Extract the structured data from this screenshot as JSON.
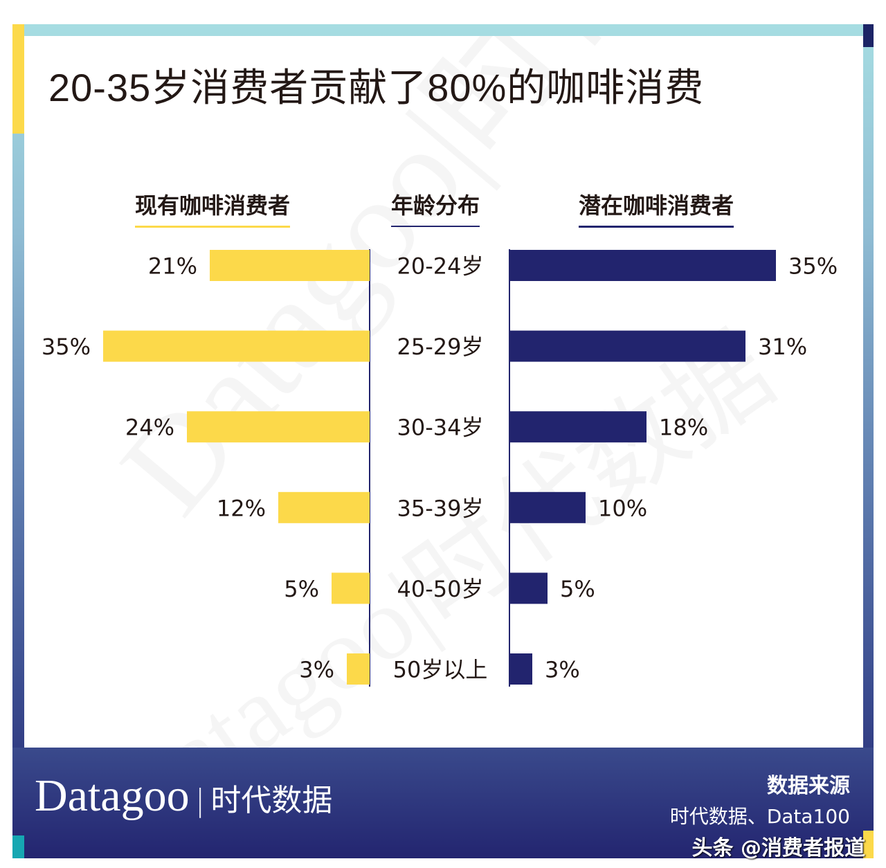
{
  "title": "20-35岁消费者贡献了80%的咖啡消费",
  "colors": {
    "existing": "#fcd94a",
    "potential": "#22246e",
    "frame_top": "#a6dde2",
    "frame_bottom": "#222470"
  },
  "chart_data": {
    "type": "bar",
    "orientation": "horizontal-butterfly",
    "categories_header": "年龄分布",
    "categories": [
      "20-24岁",
      "25-29岁",
      "30-34岁",
      "35-39岁",
      "40-50岁",
      "50岁以上"
    ],
    "series": [
      {
        "name": "现有咖啡消费者",
        "values": [
          21,
          35,
          24,
          12,
          5,
          3
        ],
        "labels": [
          "21%",
          "35%",
          "24%",
          "12%",
          "5%",
          "3%"
        ]
      },
      {
        "name": "潜在咖啡消费者",
        "values": [
          35,
          31,
          18,
          10,
          5,
          3
        ],
        "labels": [
          "35%",
          "31%",
          "18%",
          "10%",
          "5%",
          "3%"
        ]
      }
    ],
    "unit": "%"
  },
  "watermark": "Datagoo|时代数据",
  "footer": {
    "logo_en": "Datagoo",
    "logo_cn": "时代数据",
    "source_heading": "数据来源",
    "source_text": "时代数据、Data100",
    "credit": "头条 @消费者报道"
  }
}
